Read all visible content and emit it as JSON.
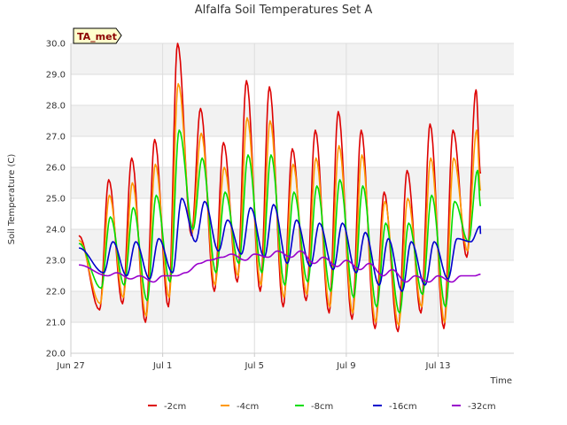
{
  "chart_data": {
    "type": "line",
    "title": "Alfalfa Soil Temperatures Set A",
    "xlabel": "Time",
    "ylabel": "Soil Temperature (C)",
    "badge": "TA_met",
    "ylim": [
      20.0,
      30.0
    ],
    "yticks": [
      20.0,
      21.0,
      22.0,
      23.0,
      24.0,
      25.0,
      26.0,
      27.0,
      28.0,
      29.0,
      30.0
    ],
    "yticklabels": [
      "20.0",
      "21.0",
      "22.0",
      "23.0",
      "24.0",
      "25.0",
      "26.0",
      "27.0",
      "28.0",
      "29.0",
      "30.0"
    ],
    "xlim": [
      "Jun 27",
      "Jul 16"
    ],
    "xticklabels": [
      "Jun 27",
      "Jul 1",
      "Jul 5",
      "Jul 9",
      "Jul 13"
    ],
    "grid": true,
    "legend_placement": "bottom",
    "x_day_start": "Jun 27",
    "series": [
      {
        "name": "-2cm",
        "color": "#dd0000",
        "daily_max": [
          25.6,
          26.3,
          26.9,
          30.0,
          27.9,
          26.8,
          28.8,
          28.6,
          26.6,
          27.2,
          27.8,
          27.2,
          25.2,
          25.9,
          27.4,
          27.2,
          28.5
        ],
        "daily_min": [
          21.4,
          21.6,
          21.0,
          21.5,
          23.8,
          22.0,
          22.3,
          22.0,
          21.5,
          21.7,
          21.3,
          21.1,
          20.8,
          20.7,
          21.3,
          20.8,
          23.1
        ]
      },
      {
        "name": "-4cm",
        "color": "#ff9900",
        "daily_max": [
          25.1,
          25.5,
          26.1,
          28.7,
          27.1,
          26.0,
          27.6,
          27.5,
          26.1,
          26.3,
          26.7,
          26.4,
          24.9,
          25.0,
          26.3,
          26.3,
          27.2
        ],
        "daily_min": [
          21.6,
          21.8,
          21.2,
          21.8,
          23.9,
          22.2,
          22.5,
          22.2,
          21.8,
          21.9,
          21.5,
          21.3,
          21.0,
          20.9,
          21.5,
          21.0,
          23.3
        ]
      },
      {
        "name": "-8cm",
        "color": "#00dd00",
        "daily_max": [
          24.4,
          24.7,
          25.1,
          27.2,
          26.3,
          25.2,
          26.4,
          26.4,
          25.2,
          25.4,
          25.6,
          25.4,
          24.2,
          24.2,
          25.1,
          24.9,
          25.9
        ],
        "daily_min": [
          22.1,
          22.2,
          21.7,
          22.3,
          24.0,
          22.6,
          22.9,
          22.6,
          22.2,
          22.3,
          22.0,
          21.8,
          21.5,
          21.3,
          21.9,
          21.5,
          23.6
        ]
      },
      {
        "name": "-16cm",
        "color": "#0000cc",
        "daily_max": [
          23.6,
          23.6,
          23.7,
          25.0,
          24.9,
          24.3,
          24.7,
          24.8,
          24.3,
          24.2,
          24.2,
          23.9,
          23.7,
          23.6,
          23.6,
          23.7,
          24.1
        ],
        "daily_min": [
          22.6,
          22.5,
          22.4,
          22.6,
          23.6,
          23.3,
          23.2,
          23.1,
          22.9,
          22.8,
          22.7,
          22.6,
          22.2,
          22.0,
          22.2,
          22.4,
          23.6
        ]
      },
      {
        "name": "-32cm",
        "color": "#9900cc",
        "daily_max": [
          22.6,
          22.5,
          22.5,
          22.6,
          23.0,
          23.2,
          23.2,
          23.3,
          23.3,
          23.1,
          23.0,
          22.9,
          22.7,
          22.5,
          22.5,
          22.5,
          22.6
        ],
        "daily_min": [
          22.5,
          22.4,
          22.3,
          22.5,
          22.9,
          23.1,
          23.0,
          23.1,
          23.1,
          22.9,
          22.8,
          22.7,
          22.5,
          22.3,
          22.3,
          22.3,
          22.5
        ]
      }
    ]
  }
}
